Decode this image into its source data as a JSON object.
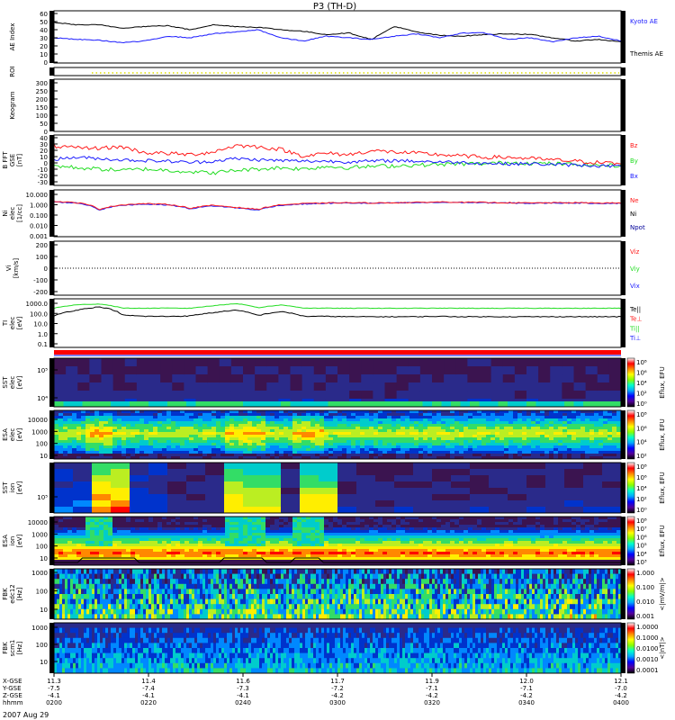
{
  "title": "P3 (TH-D)",
  "date_label": "2007 Aug 29",
  "colors": {
    "red": "#ff1a1a",
    "green": "#22dd22",
    "blue": "#1a1aff",
    "black": "#000000",
    "darkblue": "#000099",
    "yellow": "#dddd00"
  },
  "colorbar_stops": [
    "#ffffff",
    "#ff0000",
    "#ff8800",
    "#ffff00",
    "#88ff00",
    "#00ffcc",
    "#00aaff",
    "#0000ff",
    "#550099",
    "#000000"
  ],
  "spectrogram_palette": [
    "#2a0f3a",
    "#3b1450",
    "#2a2a8a",
    "#0033cc",
    "#0088ff",
    "#00cccc",
    "#33dd66",
    "#bbee22",
    "#ffee00",
    "#ff8800",
    "#ff0000"
  ],
  "panels": [
    {
      "id": "ae",
      "ylabel": [
        "AE Index"
      ],
      "ticks": [
        "60",
        "50",
        "40",
        "30",
        "20",
        "10",
        "0"
      ],
      "right_labels": [
        {
          "text": "Kyoto AE",
          "color": "#1a1aff"
        },
        {
          "text": "Themis AE",
          "color": "#000000"
        }
      ]
    },
    {
      "id": "roi",
      "ylabel": [
        "ROI"
      ],
      "ticks": [],
      "right_labels": []
    },
    {
      "id": "keogram",
      "ylabel": [
        "Keogram"
      ],
      "ticks": [
        "300",
        "250",
        "200",
        "150",
        "100",
        "50",
        "0"
      ],
      "right_labels": []
    },
    {
      "id": "bfield",
      "ylabel": [
        "B FFT",
        "GSE",
        "[nT]"
      ],
      "ticks": [
        "40",
        "30",
        "20",
        "10",
        "0",
        "-10",
        "-20",
        "-30"
      ],
      "right_labels": [
        {
          "text": "Bz",
          "color": "#ff1a1a"
        },
        {
          "text": "By",
          "color": "#22dd22"
        },
        {
          "text": "Bx",
          "color": "#1a1aff"
        }
      ]
    },
    {
      "id": "density",
      "ylabel": [
        "Ni",
        "elec",
        "[1/cc]"
      ],
      "ticks": [
        "10.000",
        "1.000",
        "0.100",
        "0.010",
        "0.001"
      ],
      "right_labels": [
        {
          "text": "Ne",
          "color": "#ff1a1a"
        },
        {
          "text": "Ni",
          "color": "#000000"
        },
        {
          "text": "Npot",
          "color": "#000099"
        }
      ]
    },
    {
      "id": "velocity",
      "ylabel": [
        "Vi",
        "[km/s]"
      ],
      "ticks": [
        "200",
        "100",
        "0",
        "-100",
        "-200"
      ],
      "right_labels": [
        {
          "text": "Viz",
          "color": "#ff1a1a"
        },
        {
          "text": "Viy",
          "color": "#22dd22"
        },
        {
          "text": "Vix",
          "color": "#1a1aff"
        }
      ]
    },
    {
      "id": "temperature",
      "ylabel": [
        "TI",
        "elec",
        "[eV]"
      ],
      "ticks": [
        "1000.0",
        "100.0",
        "10.0",
        "1.0",
        "0.1"
      ],
      "right_labels": [
        {
          "text": "Te||",
          "color": "#000000"
        },
        {
          "text": "Te⊥",
          "color": "#ff1a1a"
        },
        {
          "text": "Ti||",
          "color": "#22dd22"
        },
        {
          "text": "Ti⊥",
          "color": "#1a1aff"
        }
      ]
    },
    {
      "id": "sst_elec",
      "ylabel": [
        "SST",
        "elec",
        "[eV]"
      ],
      "ticks": [
        "10⁵",
        "10⁴"
      ],
      "right_labels": []
    },
    {
      "id": "esa_elec",
      "ylabel": [
        "ESA",
        "elec",
        "[eV]"
      ],
      "ticks": [
        "10000",
        "1000",
        "100",
        "10"
      ],
      "right_labels": []
    },
    {
      "id": "sst_ion",
      "ylabel": [
        "SST",
        "ion",
        "[eV]"
      ],
      "ticks": [
        "10⁵"
      ],
      "right_labels": []
    },
    {
      "id": "esa_ion",
      "ylabel": [
        "ESA",
        "ion",
        "[eV]"
      ],
      "ticks": [
        "10000",
        "1000",
        "100",
        "10"
      ],
      "right_labels": []
    },
    {
      "id": "fbk_edc",
      "ylabel": [
        "FBK",
        "edc12",
        "[Hz]"
      ],
      "ticks": [
        "1000",
        "100",
        "10"
      ],
      "right_labels": []
    },
    {
      "id": "fbk_scm",
      "ylabel": [
        "FBK",
        "scm1",
        "[Hz]"
      ],
      "ticks": [
        "1000",
        "100",
        "10"
      ],
      "right_labels": []
    }
  ],
  "colorbars": [
    {
      "id": "cb_sst_elec",
      "ticks": [
        "10⁸",
        "10⁶",
        "10⁴",
        "10²",
        "10⁰"
      ],
      "label": "Eflux, EFU"
    },
    {
      "id": "cb_esa_elec",
      "ticks": [
        "10⁸",
        "10⁶",
        "10⁴",
        "10²"
      ],
      "label": "Eflux, EFU"
    },
    {
      "id": "cb_sst_ion",
      "ticks": [
        "10⁸",
        "10⁶",
        "10⁴",
        "10²",
        "10⁰"
      ],
      "label": "Eflux, EFU"
    },
    {
      "id": "cb_esa_ion",
      "ticks": [
        "10⁸",
        "10⁷",
        "10⁶",
        "10⁵",
        "10⁴",
        "10³"
      ],
      "label": "Eflux, EFU"
    },
    {
      "id": "cb_fbk_edc",
      "ticks": [
        "1.000",
        "0.100",
        "0.010",
        "0.001"
      ],
      "label": "<|mV/m|>"
    },
    {
      "id": "cb_fbk_scm",
      "ticks": [
        "1.0000",
        "0.1000",
        "0.0100",
        "0.0010",
        "0.0001"
      ],
      "label": "<|nT|>"
    }
  ],
  "xaxis": {
    "row_labels": [
      "X-GSE",
      "Y-GSE",
      "Z-GSE",
      "hhmm"
    ],
    "columns": [
      {
        "x": "11.3",
        "y": "-7.5",
        "z": "-4.1",
        "t": "0200"
      },
      {
        "x": "11.4",
        "y": "-7.4",
        "z": "-4.1",
        "t": "0220"
      },
      {
        "x": "11.6",
        "y": "-7.3",
        "z": "-4.1",
        "t": "0240"
      },
      {
        "x": "11.7",
        "y": "-7.2",
        "z": "-4.2",
        "t": "0300"
      },
      {
        "x": "11.9",
        "y": "-7.1",
        "z": "-4.2",
        "t": "0320"
      },
      {
        "x": "12.0",
        "y": "-7.1",
        "z": "-4.2",
        "t": "0340"
      },
      {
        "x": "12.1",
        "y": "-7.0",
        "z": "-4.2",
        "t": "0400"
      }
    ]
  },
  "chart_data": {
    "type": "line",
    "title": "P3 (TH-D)",
    "time_axis": [
      "0200",
      "0220",
      "0240",
      "0300",
      "0320",
      "0340",
      "0400"
    ],
    "series": [
      {
        "name": "Kyoto AE",
        "panel": "AE Index",
        "values": [
          30,
          28,
          27,
          24,
          26,
          32,
          30,
          35,
          37,
          40,
          30,
          26,
          32,
          30,
          28,
          32,
          35,
          30,
          36,
          36,
          28,
          30,
          25,
          30,
          32,
          26
        ]
      },
      {
        "name": "Themis AE",
        "panel": "AE Index",
        "values": [
          49,
          46,
          46,
          42,
          44,
          45,
          40,
          46,
          44,
          43,
          40,
          38,
          34,
          36,
          28,
          44,
          37,
          33,
          32,
          34,
          35,
          34,
          30,
          26,
          28,
          25
        ]
      },
      {
        "name": "Bz",
        "panel": "B FFT GSE [nT]",
        "values": [
          25,
          22,
          22,
          24,
          15,
          14,
          12,
          16,
          26,
          24,
          20,
          10,
          14,
          12,
          18,
          16,
          14,
          12,
          10,
          8,
          8,
          6,
          4,
          2,
          0,
          -2
        ]
      },
      {
        "name": "By",
        "panel": "B FFT GSE [nT]",
        "values": [
          -5,
          -8,
          -10,
          -12,
          -10,
          -12,
          -14,
          -16,
          -12,
          -10,
          -8,
          -10,
          -6,
          -8,
          -6,
          -5,
          -4,
          -3,
          -2,
          -2,
          0,
          -1,
          -2,
          -3,
          -4,
          -5
        ]
      },
      {
        "name": "Bx",
        "panel": "B FFT GSE [nT]",
        "values": [
          5,
          8,
          6,
          4,
          3,
          2,
          0,
          2,
          6,
          4,
          3,
          2,
          2,
          1,
          2,
          3,
          2,
          1,
          0,
          -1,
          -2,
          -2,
          -3,
          -4,
          -5,
          -6
        ]
      },
      {
        "name": "Ne",
        "panel": "Ni elec [1/cc]",
        "values": [
          2,
          1.5,
          0.3,
          0.9,
          1.2,
          1.0,
          0.4,
          0.8,
          0.5,
          0.3,
          0.9,
          1.2,
          1.4,
          1.5,
          1.4,
          1.5,
          1.6,
          1.8,
          1.7,
          1.6,
          1.5,
          1.4,
          1.5,
          1.5,
          1.4,
          1.4
        ]
      },
      {
        "name": "Ni",
        "panel": "Ni elec [1/cc]",
        "values": [
          1.8,
          1.4,
          0.25,
          0.8,
          1.1,
          0.9,
          0.35,
          0.7,
          0.45,
          0.25,
          0.8,
          1.1,
          1.3,
          1.4,
          1.3,
          1.4,
          1.5,
          1.6,
          1.6,
          1.5,
          1.4,
          1.3,
          1.4,
          1.4,
          1.3,
          1.3
        ]
      },
      {
        "name": "Ti||",
        "panel": "TI elec [eV]",
        "values": [
          400,
          900,
          1100,
          420,
          400,
          420,
          400,
          700,
          1200,
          450,
          850,
          420,
          410,
          400,
          410,
          400,
          400,
          410,
          400,
          400,
          400,
          400,
          410,
          400,
          400,
          400
        ]
      },
      {
        "name": "Te||",
        "panel": "TI elec [eV]",
        "values": [
          60,
          250,
          550,
          80,
          60,
          60,
          65,
          140,
          250,
          70,
          180,
          60,
          60,
          55,
          55,
          55,
          55,
          60,
          55,
          55,
          55,
          55,
          55,
          55,
          55,
          55
        ]
      }
    ],
    "xlabel": "",
    "ylabel": ""
  }
}
